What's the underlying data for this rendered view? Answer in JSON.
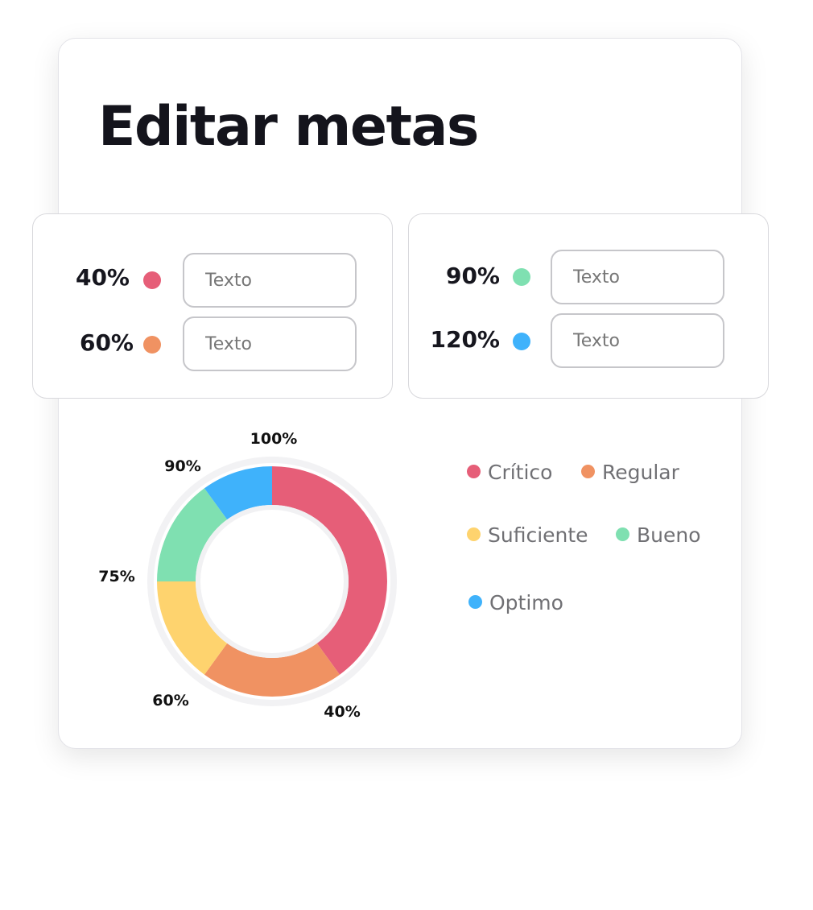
{
  "title": "Editar metas",
  "goals": [
    {
      "percent_label": "40%",
      "color": "#e65e78",
      "placeholder": "Texto"
    },
    {
      "percent_label": "60%",
      "color": "#f09262",
      "placeholder": "Texto"
    },
    {
      "percent_label": "90%",
      "color": "#7fe0b1",
      "placeholder": "Texto"
    },
    {
      "percent_label": "120%",
      "color": "#3fb2fb",
      "placeholder": "Texto"
    }
  ],
  "chart_data": {
    "type": "pie",
    "subtype": "donut",
    "series": [
      {
        "name": "Crítico",
        "color": "#e65e78",
        "value": 40
      },
      {
        "name": "Regular",
        "color": "#f09262",
        "value": 20
      },
      {
        "name": "Suficiente",
        "color": "#fed36e",
        "value": 15
      },
      {
        "name": "Bueno",
        "color": "#7fe0b1",
        "value": 15
      },
      {
        "name": "Optimo",
        "color": "#3fb2fb",
        "value": 10
      }
    ],
    "tick_labels": [
      "100%",
      "40%",
      "60%",
      "75%",
      "90%"
    ],
    "legend_position": "right"
  }
}
